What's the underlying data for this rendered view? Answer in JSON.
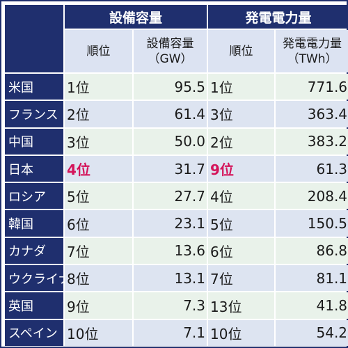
{
  "headers": {
    "capacity_group": "設備容量",
    "generation_group": "発電電力量",
    "rank": "順位",
    "capacity_unit_line1": "設備容量",
    "capacity_unit_line2": "（GW）",
    "generation_unit_line1": "発電電力量",
    "generation_unit_line2": "（TWh）"
  },
  "rows": [
    {
      "country": "米国",
      "capacity_rank": "1位",
      "capacity": "95.5",
      "generation_rank": "1位",
      "generation": "771.6"
    },
    {
      "country": "フランス",
      "capacity_rank": "2位",
      "capacity": "61.4",
      "generation_rank": "3位",
      "generation": "363.4"
    },
    {
      "country": "中国",
      "capacity_rank": "3位",
      "capacity": "50.0",
      "generation_rank": "2位",
      "generation": "383.2"
    },
    {
      "country": "日本",
      "capacity_rank": "4位",
      "capacity": "31.7",
      "generation_rank": "9位",
      "generation": "61.3"
    },
    {
      "country": "ロシア",
      "capacity_rank": "5位",
      "capacity": "27.7",
      "generation_rank": "4位",
      "generation": "208.4"
    },
    {
      "country": "韓国",
      "capacity_rank": "6位",
      "capacity": "23.1",
      "generation_rank": "5位",
      "generation": "150.5"
    },
    {
      "country": "カナダ",
      "capacity_rank": "7位",
      "capacity": "13.6",
      "generation_rank": "6位",
      "generation": "86.8"
    },
    {
      "country": "ウクライナ",
      "capacity_rank": "8位",
      "capacity": "13.1",
      "generation_rank": "7位",
      "generation": "81.1"
    },
    {
      "country": "英国",
      "capacity_rank": "9位",
      "capacity": "7.3",
      "generation_rank": "13位",
      "generation": "41.8"
    },
    {
      "country": "スペイン",
      "capacity_rank": "10位",
      "capacity": "7.1",
      "generation_rank": "10位",
      "generation": "54.2"
    }
  ],
  "colors": {
    "header_navy": "#1f2f6e",
    "subheader_bg": "#dce3f2",
    "row_green": "#e9f2ea",
    "row_blue": "#dde4f1",
    "highlight": "#d4145a"
  },
  "highlight_row": "日本"
}
